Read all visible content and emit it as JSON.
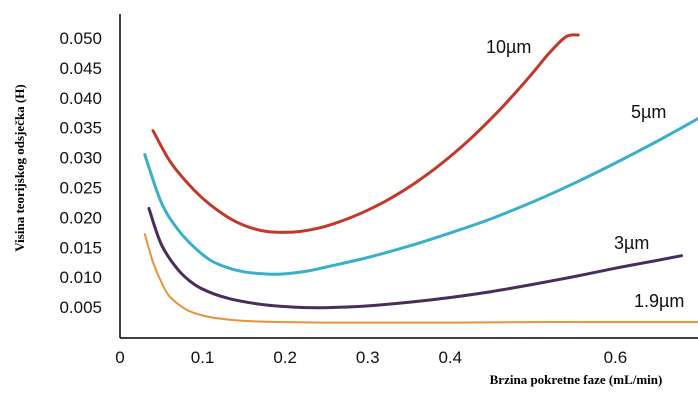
{
  "chart_data": {
    "type": "line",
    "title": "",
    "xlabel": "Brzina pokretne faze (mL/min)",
    "ylabel": "Visina teorijskog odsječka (H)",
    "xlim": [
      0,
      0.7
    ],
    "ylim": [
      0,
      0.052
    ],
    "x_ticks": [
      "0",
      "0.1",
      "0.2",
      "0.3",
      "0.4",
      "0.6"
    ],
    "y_ticks": [
      "0.005",
      "0.010",
      "0.015",
      "0.020",
      "0.025",
      "0.030",
      "0.035",
      "0.040",
      "0.045",
      "0.050"
    ],
    "grid": false,
    "series": [
      {
        "name": "10µm",
        "color": "#c0392b",
        "x": [
          0.04,
          0.06,
          0.08,
          0.1,
          0.12,
          0.14,
          0.16,
          0.18,
          0.2,
          0.22,
          0.24,
          0.26,
          0.28,
          0.3,
          0.32,
          0.34,
          0.36,
          0.38,
          0.4,
          0.42,
          0.44,
          0.46,
          0.48,
          0.5,
          0.52,
          0.54,
          0.555
        ],
        "y": [
          0.0345,
          0.0295,
          0.026,
          0.0232,
          0.021,
          0.0193,
          0.0182,
          0.0176,
          0.0175,
          0.0177,
          0.0182,
          0.019,
          0.02,
          0.0212,
          0.0226,
          0.0242,
          0.026,
          0.028,
          0.0302,
          0.0326,
          0.0352,
          0.038,
          0.041,
          0.0442,
          0.0475,
          0.0502,
          0.0505
        ]
      },
      {
        "name": "5µm",
        "color": "#3ab0c8",
        "x": [
          0.03,
          0.05,
          0.07,
          0.09,
          0.11,
          0.13,
          0.15,
          0.17,
          0.19,
          0.21,
          0.23,
          0.25,
          0.3,
          0.35,
          0.4,
          0.45,
          0.5,
          0.55,
          0.6,
          0.65,
          0.7
        ],
        "y": [
          0.0305,
          0.0225,
          0.018,
          0.015,
          0.0128,
          0.0116,
          0.0109,
          0.0106,
          0.0105,
          0.0107,
          0.0111,
          0.0117,
          0.0133,
          0.0152,
          0.0174,
          0.0198,
          0.0226,
          0.0257,
          0.0291,
          0.0327,
          0.0365
        ]
      },
      {
        "name": "3µm",
        "color": "#4a2d5a",
        "x": [
          0.035,
          0.05,
          0.07,
          0.09,
          0.11,
          0.13,
          0.15,
          0.18,
          0.21,
          0.24,
          0.27,
          0.3,
          0.35,
          0.4,
          0.45,
          0.5,
          0.55,
          0.6,
          0.65,
          0.68
        ],
        "y": [
          0.0215,
          0.0155,
          0.0113,
          0.0088,
          0.0074,
          0.0065,
          0.0059,
          0.0053,
          0.005,
          0.0049,
          0.005,
          0.0052,
          0.0058,
          0.0066,
          0.0076,
          0.0088,
          0.0101,
          0.0115,
          0.0128,
          0.0136
        ]
      },
      {
        "name": "1.9µm",
        "color": "#e8923a",
        "x": [
          0.03,
          0.04,
          0.05,
          0.06,
          0.08,
          0.1,
          0.12,
          0.15,
          0.2,
          0.25,
          0.3,
          0.4,
          0.5,
          0.6,
          0.7
        ],
        "y": [
          0.0172,
          0.0125,
          0.0092,
          0.0068,
          0.0046,
          0.0036,
          0.0031,
          0.0027,
          0.0025,
          0.0024,
          0.0024,
          0.0024,
          0.0025,
          0.0025,
          0.0025
        ]
      }
    ]
  }
}
